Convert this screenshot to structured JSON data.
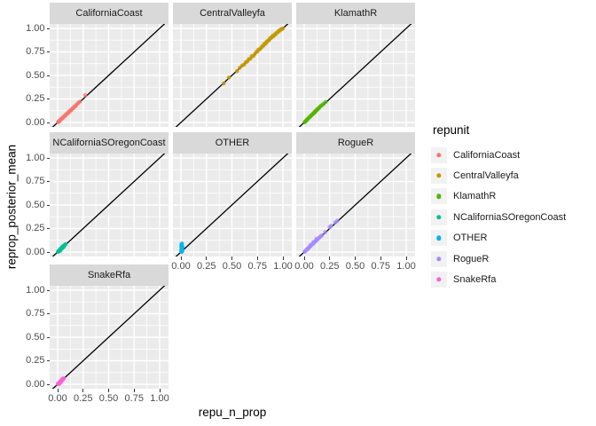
{
  "figure": {
    "background": "#FFFFFF",
    "panel_background": "#EBEBEB",
    "strip_background": "#D9D9D9",
    "grid_color": "#FFFFFF",
    "abline_color": "#000000",
    "tick_label_color": "#4D4D4D",
    "point_opacity": 0.82
  },
  "chart_data": {
    "type": "scatter",
    "facet_variable": "repunit",
    "xlabel": "repu_n_prop",
    "ylabel": "reprop_posterior_mean",
    "axis": {
      "tick_values": [
        0,
        0.25,
        0.5,
        0.75,
        1
      ],
      "tick_labels": [
        "0.00",
        "0.25",
        "0.50",
        "0.75",
        "1.00"
      ],
      "minor_tick_values": [
        0.125,
        0.375,
        0.625,
        0.875
      ],
      "xlim": [
        -0.08,
        1.08
      ],
      "ylim": [
        -0.05,
        1.05
      ],
      "grid": "major+minor"
    },
    "abline": {
      "slope": 1,
      "intercept": 0
    },
    "legend": {
      "title": "repunit",
      "position": "right"
    },
    "facets": [
      {
        "label": "CaliforniaCoast",
        "color": "#F8766D",
        "row": 0,
        "col": 0,
        "show_x_axis": false,
        "show_y_axis": true,
        "points": [
          [
            0.004,
            0.003
          ],
          [
            0.008,
            0.01
          ],
          [
            0.012,
            0.009
          ],
          [
            0.016,
            0.018
          ],
          [
            0.02,
            0.017
          ],
          [
            0.025,
            0.027
          ],
          [
            0.03,
            0.032
          ],
          [
            0.038,
            0.036
          ],
          [
            0.045,
            0.047
          ],
          [
            0.052,
            0.05
          ],
          [
            0.06,
            0.062
          ],
          [
            0.068,
            0.066
          ],
          [
            0.075,
            0.078
          ],
          [
            0.082,
            0.08
          ],
          [
            0.09,
            0.093
          ],
          [
            0.098,
            0.1
          ],
          [
            0.105,
            0.103
          ],
          [
            0.112,
            0.116
          ],
          [
            0.12,
            0.118
          ],
          [
            0.128,
            0.133
          ],
          [
            0.135,
            0.132
          ],
          [
            0.145,
            0.15
          ],
          [
            0.155,
            0.152
          ],
          [
            0.165,
            0.17
          ],
          [
            0.175,
            0.173
          ],
          [
            0.185,
            0.19
          ],
          [
            0.2,
            0.205
          ],
          [
            0.215,
            0.22
          ],
          [
            0.27,
            0.29
          ]
        ]
      },
      {
        "label": "CentralValleyfa",
        "color": "#C49A00",
        "row": 0,
        "col": 1,
        "show_x_axis": false,
        "show_y_axis": false,
        "points": [
          [
            0.42,
            0.415
          ],
          [
            0.47,
            0.478
          ],
          [
            0.55,
            0.545
          ],
          [
            0.575,
            0.58
          ],
          [
            0.6,
            0.606
          ],
          [
            0.62,
            0.614
          ],
          [
            0.635,
            0.64
          ],
          [
            0.65,
            0.648
          ],
          [
            0.665,
            0.672
          ],
          [
            0.68,
            0.678
          ],
          [
            0.695,
            0.705
          ],
          [
            0.71,
            0.706
          ],
          [
            0.725,
            0.73
          ],
          [
            0.74,
            0.75
          ],
          [
            0.75,
            0.756
          ],
          [
            0.76,
            0.775
          ],
          [
            0.775,
            0.78
          ],
          [
            0.79,
            0.8
          ],
          [
            0.8,
            0.812
          ],
          [
            0.81,
            0.818
          ],
          [
            0.82,
            0.838
          ],
          [
            0.83,
            0.84
          ],
          [
            0.84,
            0.858
          ],
          [
            0.85,
            0.865
          ],
          [
            0.86,
            0.872
          ],
          [
            0.87,
            0.89
          ],
          [
            0.88,
            0.9
          ],
          [
            0.89,
            0.905
          ],
          [
            0.9,
            0.922
          ],
          [
            0.91,
            0.92
          ],
          [
            0.92,
            0.938
          ],
          [
            0.93,
            0.94
          ],
          [
            0.94,
            0.955
          ],
          [
            0.95,
            0.96
          ],
          [
            0.96,
            0.975
          ],
          [
            0.97,
            0.978
          ],
          [
            0.98,
            0.99
          ],
          [
            0.99,
            0.992
          ],
          [
            1.0,
            1.0
          ]
        ]
      },
      {
        "label": "KlamathR",
        "color": "#53B400",
        "row": 0,
        "col": 2,
        "show_x_axis": false,
        "show_y_axis": false,
        "points": [
          [
            0.004,
            0.002
          ],
          [
            0.01,
            0.011
          ],
          [
            0.018,
            0.016
          ],
          [
            0.025,
            0.027
          ],
          [
            0.032,
            0.035
          ],
          [
            0.04,
            0.042
          ],
          [
            0.048,
            0.053
          ],
          [
            0.055,
            0.058
          ],
          [
            0.063,
            0.068
          ],
          [
            0.07,
            0.077
          ],
          [
            0.078,
            0.082
          ],
          [
            0.085,
            0.092
          ],
          [
            0.092,
            0.097
          ],
          [
            0.1,
            0.112
          ],
          [
            0.108,
            0.11
          ],
          [
            0.115,
            0.125
          ],
          [
            0.122,
            0.13
          ],
          [
            0.13,
            0.143
          ],
          [
            0.14,
            0.148
          ],
          [
            0.15,
            0.162
          ],
          [
            0.16,
            0.173
          ],
          [
            0.175,
            0.185
          ],
          [
            0.19,
            0.198
          ],
          [
            0.21,
            0.218
          ]
        ]
      },
      {
        "label": "NCaliforniaSOregonCoast",
        "color": "#00C094",
        "row": 1,
        "col": 0,
        "show_x_axis": false,
        "show_y_axis": true,
        "points": [
          [
            0.003,
            0.002
          ],
          [
            0.007,
            0.009
          ],
          [
            0.011,
            0.007
          ],
          [
            0.015,
            0.017
          ],
          [
            0.019,
            0.024
          ],
          [
            0.023,
            0.02
          ],
          [
            0.027,
            0.032
          ],
          [
            0.031,
            0.028
          ],
          [
            0.035,
            0.04
          ],
          [
            0.04,
            0.036
          ],
          [
            0.045,
            0.05
          ],
          [
            0.05,
            0.046
          ],
          [
            0.055,
            0.06
          ],
          [
            0.06,
            0.056
          ],
          [
            0.065,
            0.07
          ],
          [
            0.07,
            0.076
          ],
          [
            0.078,
            0.083
          ],
          [
            0.026,
            0.014
          ],
          [
            0.044,
            0.055
          ],
          [
            0.058,
            0.066
          ]
        ]
      },
      {
        "label": "OTHER",
        "color": "#00B6EB",
        "row": 1,
        "col": 1,
        "show_x_axis": true,
        "show_y_axis": false,
        "points": [
          [
            0.003,
            0.004
          ],
          [
            0.005,
            0.014
          ],
          [
            0.004,
            0.024
          ],
          [
            0.006,
            0.034
          ],
          [
            0.008,
            0.044
          ],
          [
            0.005,
            0.054
          ],
          [
            0.007,
            0.063
          ],
          [
            0.009,
            0.073
          ],
          [
            0.006,
            0.082
          ],
          [
            0.01,
            0.09
          ],
          [
            0.012,
            0.058
          ],
          [
            0.01,
            0.038
          ],
          [
            0.008,
            0.019
          ],
          [
            0.013,
            0.008
          ],
          [
            0.015,
            0.048
          ],
          [
            0.004,
            0.068
          ],
          [
            0.011,
            0.028
          ],
          [
            0.007,
            0.001
          ]
        ]
      },
      {
        "label": "RogueR",
        "color": "#A58AFF",
        "row": 1,
        "col": 2,
        "show_x_axis": true,
        "show_y_axis": false,
        "points": [
          [
            0.004,
            0.002
          ],
          [
            0.01,
            0.011
          ],
          [
            0.018,
            0.02
          ],
          [
            0.026,
            0.024
          ],
          [
            0.034,
            0.038
          ],
          [
            0.042,
            0.04
          ],
          [
            0.05,
            0.053
          ],
          [
            0.058,
            0.06
          ],
          [
            0.066,
            0.07
          ],
          [
            0.074,
            0.08
          ],
          [
            0.082,
            0.084
          ],
          [
            0.09,
            0.096
          ],
          [
            0.098,
            0.1
          ],
          [
            0.106,
            0.112
          ],
          [
            0.114,
            0.118
          ],
          [
            0.122,
            0.128
          ],
          [
            0.13,
            0.134
          ],
          [
            0.14,
            0.147
          ],
          [
            0.15,
            0.154
          ],
          [
            0.16,
            0.166
          ],
          [
            0.172,
            0.176
          ],
          [
            0.205,
            0.212
          ],
          [
            0.25,
            0.265
          ],
          [
            0.262,
            0.278
          ],
          [
            0.305,
            0.315
          ],
          [
            0.325,
            0.332
          ],
          [
            0.09,
            0.105
          ],
          [
            0.12,
            0.14
          ],
          [
            0.06,
            0.072
          ]
        ]
      },
      {
        "label": "SnakeRfa",
        "color": "#FB61D7",
        "row": 2,
        "col": 0,
        "show_x_axis": true,
        "show_y_axis": true,
        "points": [
          [
            0.002,
            0.003
          ],
          [
            0.005,
            0.004
          ],
          [
            0.008,
            0.01
          ],
          [
            0.01,
            0.007
          ],
          [
            0.013,
            0.015
          ],
          [
            0.016,
            0.012
          ],
          [
            0.019,
            0.021
          ],
          [
            0.022,
            0.026
          ],
          [
            0.025,
            0.022
          ],
          [
            0.028,
            0.032
          ],
          [
            0.032,
            0.029
          ],
          [
            0.035,
            0.04
          ],
          [
            0.04,
            0.037
          ],
          [
            0.044,
            0.05
          ],
          [
            0.05,
            0.047
          ],
          [
            0.055,
            0.06
          ],
          [
            0.015,
            0.004
          ],
          [
            0.03,
            0.018
          ],
          [
            0.045,
            0.056
          ],
          [
            0.06,
            0.062
          ]
        ]
      }
    ]
  }
}
